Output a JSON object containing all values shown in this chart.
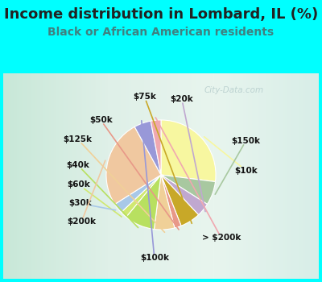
{
  "title": "Income distribution in Lombard, IL (%)",
  "subtitle": "Black or African American residents",
  "watermark": "City-Data.com",
  "bg_color": "#00FFFF",
  "labels": [
    "$10k",
    "$150k",
    "$20k",
    "$75k",
    "$50k",
    "$125k",
    "$40k",
    "$60k",
    "$30k",
    "$200k",
    "$100k",
    "> $200k"
  ],
  "sizes": [
    27,
    7,
    4,
    6,
    2,
    6,
    9,
    2,
    3,
    26,
    5,
    3
  ],
  "colors": [
    "#f7f7a0",
    "#a8c8a0",
    "#c0a8d0",
    "#c8a828",
    "#e89888",
    "#f0d098",
    "#b8e060",
    "#d0e870",
    "#a8c8e8",
    "#f0c8a0",
    "#9898d8",
    "#f0a8b0"
  ],
  "title_fontsize": 13,
  "subtitle_fontsize": 10,
  "label_fontsize": 7.5,
  "title_color": "#222222",
  "subtitle_color": "#408080"
}
